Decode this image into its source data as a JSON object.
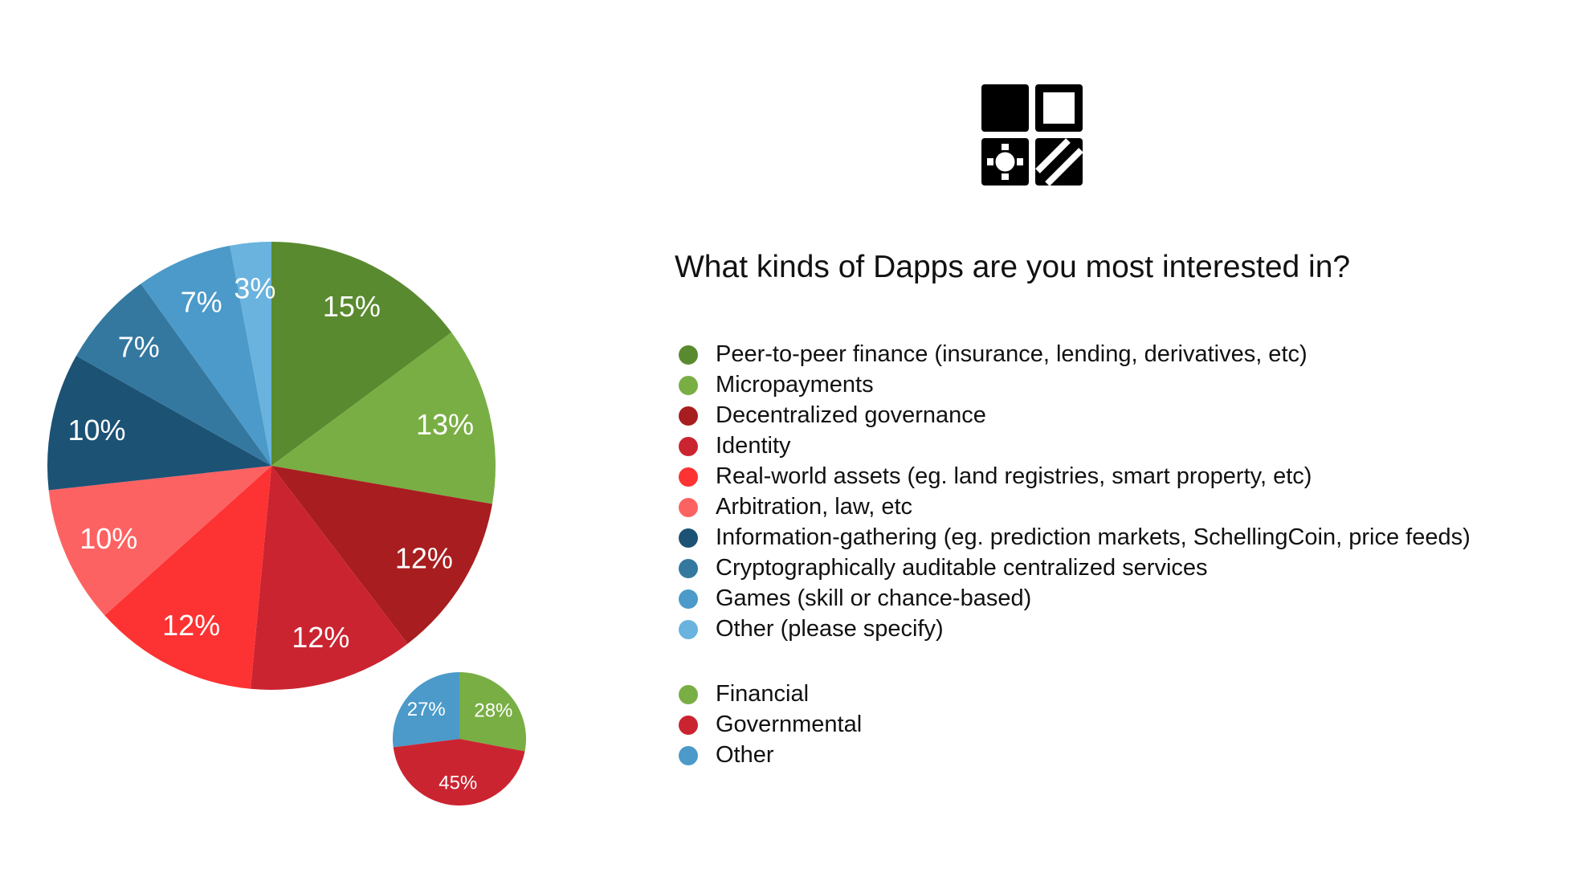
{
  "title": "What kinds of Dapps are you most interested in?",
  "chart_data": [
    {
      "type": "pie",
      "categories": [
        "Peer-to-peer finance (insurance, lending, derivatives, etc)",
        "Micropayments",
        "Decentralized governance",
        "Identity",
        "Real-world assets (eg. land registries, smart property, etc)",
        "Arbitration, law, etc",
        "Information-gathering (eg. prediction markets, SchellingCoin, price feeds)",
        "Cryptographically auditable centralized services",
        "Games (skill or chance-based)",
        "Other (please specify)"
      ],
      "values": [
        15,
        13,
        12,
        12,
        12,
        10,
        10,
        7,
        7,
        3
      ],
      "labels": [
        "15%",
        "13%",
        "12%",
        "12%",
        "12%",
        "10%",
        "10%",
        "7%",
        "7%",
        "3%"
      ],
      "colors": [
        "#5a8a2f",
        "#79ae44",
        "#a81d1f",
        "#cb2431",
        "#fd3232",
        "#fd6262",
        "#1c5274",
        "#3478a0",
        "#4b9ac9",
        "#69b3de"
      ],
      "legend_position": "right"
    },
    {
      "type": "pie",
      "categories": [
        "Financial",
        "Governmental",
        "Other"
      ],
      "values": [
        28,
        45,
        27
      ],
      "labels": [
        "28%",
        "45%",
        "27%"
      ],
      "colors": [
        "#79ae44",
        "#cb2431",
        "#4b9ac9"
      ],
      "legend_position": "right"
    }
  ],
  "logo": {
    "name": "ethereum-dapp-grid-logo"
  }
}
